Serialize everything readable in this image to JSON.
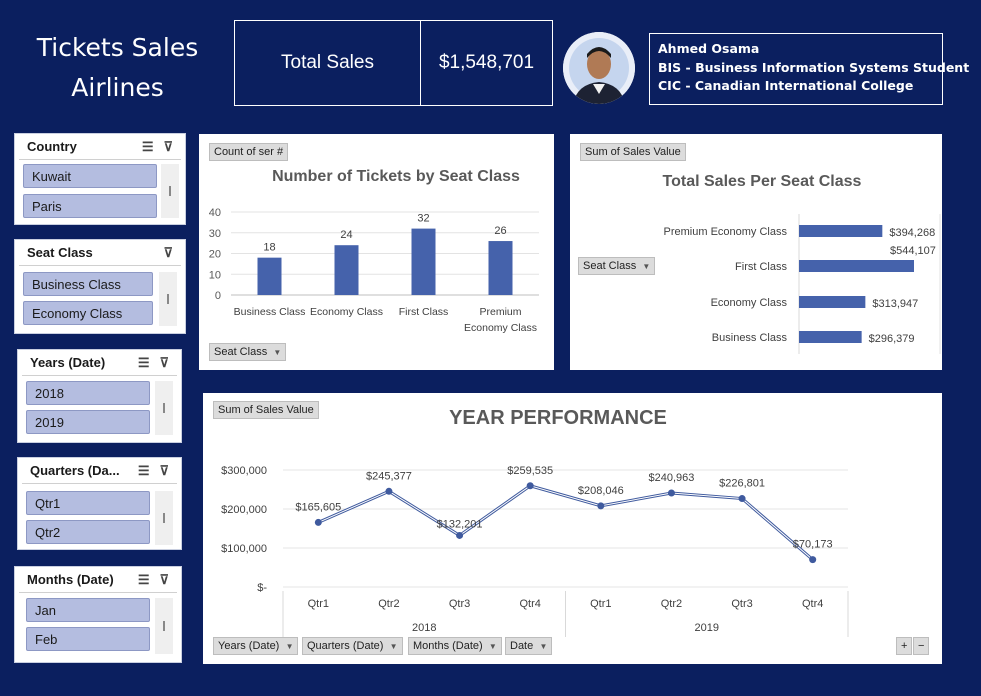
{
  "header": {
    "title_line1": "Tickets Sales",
    "title_line2": "Airlines",
    "kpi_label": "Total Sales",
    "kpi_value": "$1,548,701",
    "author_name": "Ahmed Osama",
    "author_line2": "BIS - Business Information Systems Student",
    "author_line3": "CIC - Canadian International College"
  },
  "slicers": [
    {
      "title": "Country",
      "items": [
        "Kuwait",
        "Paris"
      ]
    },
    {
      "title": "Seat Class",
      "items": [
        "Business Class",
        "Economy Class"
      ]
    },
    {
      "title": "Years (Date)",
      "items": [
        "2018",
        "2019"
      ]
    },
    {
      "title": "Quarters (Da...",
      "items": [
        "Qtr1",
        "Qtr2"
      ]
    },
    {
      "title": "Months (Date)",
      "items": [
        "Jan",
        "Feb"
      ]
    }
  ],
  "icons": {
    "multiselect": "multi-select-icon",
    "clear": "clear-filter-icon"
  },
  "pills": {
    "count_field": "Count of ser #",
    "seat_class": "Seat Class",
    "sum_sales": "Sum of Sales Value",
    "years": "Years (Date)",
    "quarters": "Quarters (Date)",
    "months": "Months (Date)",
    "date": "Date"
  },
  "colors": {
    "background": "#0b1f5f",
    "bar": "#4562ab",
    "slicer_item": "#b4bde0"
  },
  "chart_data": [
    {
      "type": "bar",
      "title": "Number of Tickets by Seat Class",
      "categories": [
        "Business Class",
        "Economy Class",
        "First Class",
        "Premium Economy Class"
      ],
      "values": [
        18,
        24,
        32,
        26
      ],
      "ylim": [
        0,
        40
      ],
      "yticks": [
        0,
        10,
        20,
        30,
        40
      ],
      "grid": true
    },
    {
      "type": "bar",
      "orientation": "horizontal",
      "title": "Total Sales Per Seat Class",
      "categories": [
        "Premium Economy Class",
        "First Class",
        "Economy Class",
        "Business Class"
      ],
      "values": [
        394268,
        544107,
        313947,
        296379
      ],
      "value_labels": [
        "$394,268",
        "$544,107",
        "$313,947",
        "$296,379"
      ]
    },
    {
      "type": "line",
      "title": "YEAR PERFORMANCE",
      "categories": [
        "Qtr1",
        "Qtr2",
        "Qtr3",
        "Qtr4",
        "Qtr1",
        "Qtr2",
        "Qtr3",
        "Qtr4"
      ],
      "groups": [
        "2018",
        "2019"
      ],
      "values": [
        165605,
        245377,
        132201,
        259535,
        208046,
        240963,
        226801,
        70173
      ],
      "value_labels": [
        "$165,605",
        "$245,377",
        "$132,201",
        "$259,535",
        "$208,046",
        "$240,963",
        "$226,801",
        "$70,173"
      ],
      "ylim": [
        0,
        300000
      ],
      "ytick_labels": [
        "$-",
        "$100,000",
        "$200,000",
        "$300,000"
      ],
      "yticks": [
        0,
        100000,
        200000,
        300000
      ]
    }
  ]
}
